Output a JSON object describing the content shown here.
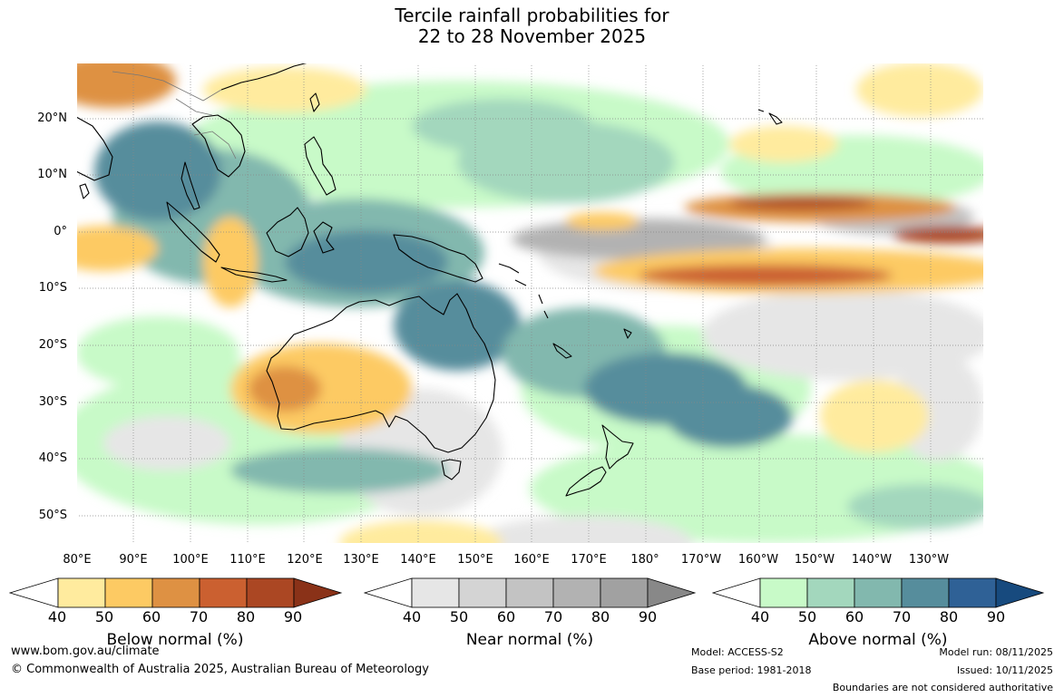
{
  "title": {
    "line1": "Tercile rainfall probabilities for",
    "line2": "22 to 28 November 2025"
  },
  "lat_labels": [
    "20°N",
    "10°N",
    "0°",
    "10°S",
    "20°S",
    "30°S",
    "40°S",
    "50°S"
  ],
  "lon_labels": [
    "80°E",
    "90°E",
    "100°E",
    "110°E",
    "120°E",
    "130°E",
    "140°E",
    "150°E",
    "160°E",
    "170°E",
    "180°",
    "170°W",
    "160°W",
    "150°W",
    "140°W",
    "130°W"
  ],
  "colorbars": {
    "below": {
      "label": "Below normal (%)",
      "ticks": [
        "40",
        "50",
        "60",
        "70",
        "80",
        "90"
      ],
      "colors": [
        "#ffeb9e",
        "#fdca63",
        "#de9143",
        "#cb6030",
        "#ab4723",
        "#8a3218"
      ]
    },
    "near": {
      "label": "Near normal (%)",
      "ticks": [
        "40",
        "50",
        "60",
        "70",
        "80",
        "90"
      ],
      "colors": [
        "#e6e6e6",
        "#d4d4d4",
        "#c3c3c3",
        "#b2b2b2",
        "#a1a1a1",
        "#888888"
      ]
    },
    "above": {
      "label": "Above normal (%)",
      "ticks": [
        "40",
        "50",
        "60",
        "70",
        "80",
        "90"
      ],
      "colors": [
        "#c8fac8",
        "#a3d7bd",
        "#82b8ae",
        "#568d9c",
        "#2f6196",
        "#174a7e"
      ]
    }
  },
  "footer": {
    "website": "www.bom.gov.au/climate",
    "copyright": "© Commonwealth of Australia 2025, Australian Bureau of Meteorology",
    "model": "Model: ACCESS-S2",
    "base_period": "Base period: 1981-2018",
    "model_run": "Model run: 08/11/2025",
    "issued": "Issued: 10/11/2025",
    "disclaimer": "Boundaries are not considered authoritative"
  }
}
